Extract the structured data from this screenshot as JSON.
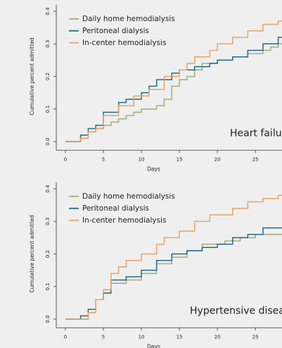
{
  "chart_data": [
    {
      "type": "line",
      "step": true,
      "annotation": "Heart failure",
      "xlabel": "Days",
      "ylabel": "Cumulative percent admitted",
      "x": [
        0,
        1,
        2,
        3,
        4,
        5,
        6,
        7,
        8,
        9,
        10,
        11,
        12,
        13,
        14,
        15,
        16,
        17,
        18,
        19,
        20,
        21,
        22,
        23,
        24,
        25,
        26,
        27,
        28,
        29
      ],
      "xlim": [
        -1.2,
        28.5
      ],
      "xticks": [
        0,
        5,
        10,
        15,
        20,
        25
      ],
      "ylim": [
        -0.02,
        0.42
      ],
      "yticks": [
        {
          "value": 0,
          "label": "0.0"
        },
        0.1,
        0.2,
        0.3,
        0.4
      ],
      "legend": "upper left",
      "series": [
        {
          "name": "Daily home hemodialysis",
          "color": "#a3ad78",
          "values": [
            0,
            0,
            0.01,
            0.03,
            0.04,
            0.05,
            0.06,
            0.07,
            0.08,
            0.09,
            0.1,
            0.1,
            0.11,
            0.13,
            0.17,
            0.19,
            0.2,
            0.22,
            0.24,
            0.24,
            0.25,
            0.25,
            0.26,
            0.26,
            0.27,
            0.27,
            0.28,
            0.29,
            0.3,
            0.3
          ]
        },
        {
          "name": "Peritoneal dialysis",
          "color": "#1f6d86",
          "values": [
            0,
            0,
            0.02,
            0.04,
            0.05,
            0.09,
            0.09,
            0.12,
            0.13,
            0.13,
            0.15,
            0.17,
            0.19,
            0.19,
            0.21,
            0.22,
            0.22,
            0.23,
            0.23,
            0.24,
            0.25,
            0.25,
            0.26,
            0.26,
            0.28,
            0.28,
            0.3,
            0.3,
            0.32,
            0.33
          ]
        },
        {
          "name": "In-center hemodialysis",
          "color": "#e9a367",
          "values": [
            0,
            0,
            0.01,
            0.03,
            0.04,
            0.08,
            0.08,
            0.11,
            0.11,
            0.14,
            0.14,
            0.16,
            0.16,
            0.2,
            0.2,
            0.22,
            0.24,
            0.26,
            0.26,
            0.28,
            0.3,
            0.3,
            0.32,
            0.32,
            0.34,
            0.34,
            0.36,
            0.36,
            0.37,
            0.37
          ]
        }
      ]
    },
    {
      "type": "line",
      "step": true,
      "annotation": "Hypertensive disease",
      "xlabel": "Days",
      "ylabel": "Cumulative percent admitted",
      "x": [
        0,
        1,
        2,
        3,
        4,
        5,
        6,
        7,
        8,
        9,
        10,
        11,
        12,
        13,
        14,
        15,
        16,
        17,
        18,
        19,
        20,
        21,
        22,
        23,
        24,
        25,
        26,
        27,
        28,
        29
      ],
      "xlim": [
        -1.2,
        28.5
      ],
      "xticks": [
        0,
        5,
        10,
        15,
        20,
        25
      ],
      "ylim": [
        -0.02,
        0.42
      ],
      "yticks": [
        {
          "value": 0,
          "label": "0.0"
        },
        0.1,
        0.2,
        0.3,
        0.4
      ],
      "legend": "upper left",
      "series": [
        {
          "name": "Daily home hemodialysis",
          "color": "#a3ad78",
          "values": [
            0,
            0,
            0,
            0.02,
            0.06,
            0.08,
            0.11,
            0.11,
            0.12,
            0.12,
            0.14,
            0.14,
            0.17,
            0.17,
            0.19,
            0.19,
            0.21,
            0.21,
            0.23,
            0.23,
            0.23,
            0.24,
            0.24,
            0.25,
            0.25,
            0.26,
            0.26,
            0.26,
            0.26,
            0.28
          ]
        },
        {
          "name": "Peritoneal dialysis",
          "color": "#1f6d86",
          "values": [
            0,
            0,
            0.01,
            0.03,
            0.06,
            0.08,
            0.12,
            0.12,
            0.13,
            0.13,
            0.15,
            0.15,
            0.18,
            0.18,
            0.2,
            0.2,
            0.21,
            0.21,
            0.22,
            0.22,
            0.23,
            0.23,
            0.25,
            0.25,
            0.26,
            0.26,
            0.28,
            0.28,
            0.28,
            0.3
          ]
        },
        {
          "name": "In-center hemodialysis",
          "color": "#e9a367",
          "values": [
            0,
            0,
            0,
            0.02,
            0.06,
            0.09,
            0.14,
            0.16,
            0.18,
            0.18,
            0.2,
            0.2,
            0.23,
            0.25,
            0.25,
            0.27,
            0.27,
            0.3,
            0.3,
            0.32,
            0.32,
            0.32,
            0.34,
            0.34,
            0.36,
            0.36,
            0.37,
            0.37,
            0.38,
            0.38
          ]
        }
      ]
    }
  ]
}
